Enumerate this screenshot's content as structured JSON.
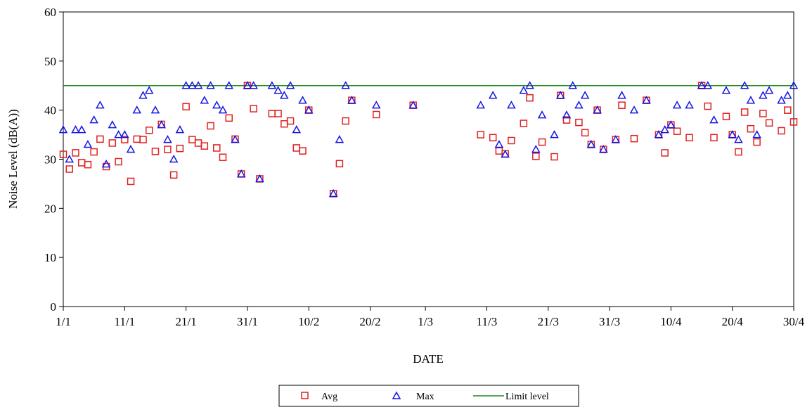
{
  "chart_data": {
    "type": "scatter",
    "xlabel": "DATE",
    "ylabel": "Noise Level (dB(A))",
    "ylim": [
      0,
      60
    ],
    "yticks": [
      0,
      10,
      20,
      30,
      40,
      50,
      60
    ],
    "x_start": "1/1",
    "x_end": "30/4",
    "x_tick_labels": [
      "1/1",
      "11/1",
      "21/1",
      "31/1",
      "10/2",
      "20/2",
      "1/3",
      "11/3",
      "21/3",
      "31/3",
      "10/4",
      "20/4",
      "30/4"
    ],
    "x_ticks": [
      "1/1",
      "11/1",
      "21/1",
      "31/1",
      "10/2",
      "20/2",
      "1/3",
      "11/3",
      "21/3",
      "31/3",
      "10/4",
      "20/4",
      "30/4"
    ],
    "grid": false,
    "legend_position": "bottom-center",
    "limit_level": 45,
    "series": [
      {
        "name": "Avg",
        "marker": "square",
        "color": "#e02020",
        "x": [
          "1/1",
          "2/1",
          "3/1",
          "4/1",
          "5/1",
          "6/1",
          "7/1",
          "8/1",
          "9/1",
          "10/1",
          "11/1",
          "12/1",
          "13/1",
          "14/1",
          "15/1",
          "16/1",
          "17/1",
          "18/1",
          "19/1",
          "20/1",
          "21/1",
          "22/1",
          "23/1",
          "24/1",
          "25/1",
          "26/1",
          "27/1",
          "28/1",
          "29/1",
          "30/1",
          "31/1",
          "1/2",
          "2/2",
          "4/2",
          "5/2",
          "6/2",
          "7/2",
          "8/2",
          "9/2",
          "10/2",
          "14/2",
          "15/2",
          "16/2",
          "17/2",
          "21/2",
          "27/2",
          "10/3",
          "12/3",
          "13/3",
          "14/3",
          "15/3",
          "17/3",
          "18/3",
          "19/3",
          "20/3",
          "22/3",
          "23/3",
          "24/3",
          "26/3",
          "27/3",
          "28/3",
          "29/3",
          "30/3",
          "1/4",
          "2/4",
          "4/4",
          "6/4",
          "8/4",
          "9/4",
          "10/4",
          "11/4",
          "13/4",
          "15/4",
          "16/4",
          "17/4",
          "19/4",
          "20/4",
          "21/4",
          "22/4",
          "23/4",
          "24/4",
          "25/4",
          "26/4",
          "28/4",
          "29/4",
          "30/4"
        ],
        "y": [
          31.0,
          28.0,
          31.3,
          29.3,
          28.9,
          31.5,
          34.1,
          28.5,
          33.3,
          29.5,
          34.0,
          25.5,
          34.1,
          34.0,
          35.9,
          31.6,
          37.1,
          32.0,
          26.8,
          32.2,
          40.7,
          34.0,
          33.3,
          32.7,
          36.8,
          32.3,
          30.4,
          38.4,
          34.1,
          27.0,
          45.0,
          40.3,
          26.0,
          39.3,
          39.3,
          37.2,
          37.8,
          32.3,
          31.7,
          40.0,
          23.0,
          29.1,
          37.8,
          42.0,
          39.1,
          41.0,
          35.0,
          34.4,
          31.7,
          31.1,
          33.8,
          37.3,
          42.5,
          30.6,
          33.5,
          30.5,
          43.0,
          38.0,
          37.5,
          35.4,
          33.0,
          40.0,
          32.0,
          34.0,
          41.0,
          34.2,
          42.0,
          35.0,
          31.3,
          37.0,
          35.7,
          34.4,
          45.0,
          40.8,
          34.4,
          38.7,
          35.0,
          31.5,
          39.6,
          36.2,
          33.5,
          39.3,
          37.4,
          35.8,
          40.0,
          37.6
        ]
      },
      {
        "name": "Max",
        "marker": "triangle",
        "color": "#1414e6",
        "x": [
          "1/1",
          "2/1",
          "3/1",
          "4/1",
          "5/1",
          "6/1",
          "7/1",
          "8/1",
          "9/1",
          "10/1",
          "11/1",
          "12/1",
          "13/1",
          "14/1",
          "15/1",
          "16/1",
          "17/1",
          "18/1",
          "19/1",
          "20/1",
          "21/1",
          "22/1",
          "23/1",
          "24/1",
          "25/1",
          "26/1",
          "27/1",
          "28/1",
          "29/1",
          "30/1",
          "31/1",
          "1/2",
          "2/2",
          "4/2",
          "5/2",
          "6/2",
          "7/2",
          "8/2",
          "9/2",
          "10/2",
          "14/2",
          "15/2",
          "16/2",
          "17/2",
          "21/2",
          "27/2",
          "10/3",
          "12/3",
          "13/3",
          "14/3",
          "15/3",
          "17/3",
          "18/3",
          "19/3",
          "20/3",
          "22/3",
          "23/3",
          "24/3",
          "25/3",
          "26/3",
          "27/3",
          "28/3",
          "29/3",
          "30/3",
          "1/4",
          "2/4",
          "4/4",
          "6/4",
          "8/4",
          "9/4",
          "10/4",
          "11/4",
          "13/4",
          "15/4",
          "16/4",
          "17/4",
          "19/4",
          "20/4",
          "21/4",
          "22/4",
          "23/4",
          "24/4",
          "25/4",
          "26/4",
          "28/4",
          "29/4",
          "30/4"
        ],
        "y": [
          36,
          30,
          36,
          36,
          33,
          38,
          41,
          29,
          37,
          35,
          35,
          32,
          40,
          43,
          44,
          40,
          37,
          34,
          30,
          36,
          45,
          45,
          45,
          42,
          45,
          41,
          40,
          45,
          34,
          27,
          45,
          45,
          26,
          45,
          44,
          43,
          45,
          36,
          42,
          40,
          23,
          34,
          45,
          42,
          41,
          41,
          41,
          43,
          33,
          31,
          41,
          44,
          45,
          32,
          39,
          35,
          43,
          39,
          45,
          41,
          43,
          33,
          40,
          32,
          34,
          43,
          40,
          42,
          35,
          36,
          37,
          41,
          41,
          45,
          45,
          38,
          44,
          35,
          34,
          45,
          42,
          35,
          43,
          44,
          42,
          43,
          45
        ]
      },
      {
        "name": "Limit level",
        "marker": "line",
        "color": "#1a8a1a",
        "x": [
          "1/1",
          "30/4"
        ],
        "y": [
          45,
          45
        ]
      }
    ]
  }
}
